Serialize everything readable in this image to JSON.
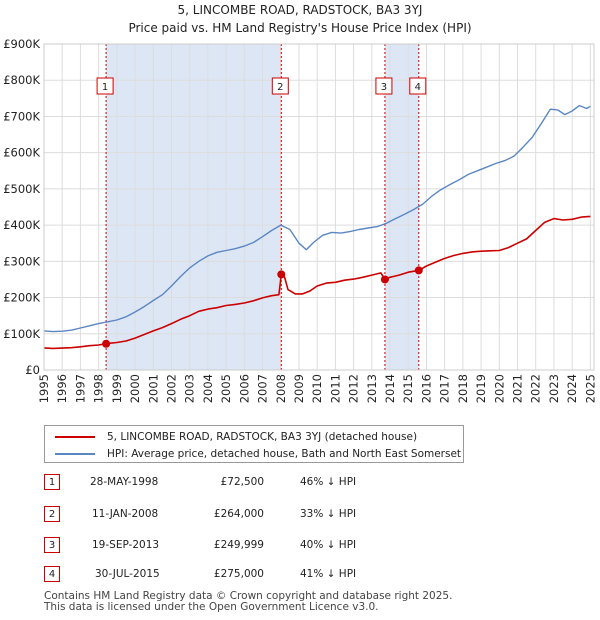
{
  "chart_data": {
    "type": "line",
    "title": "5, LINCOMBE ROAD, RADSTOCK, BA3 3YJ",
    "subtitle": "Price paid vs. HM Land Registry's House Price Index (HPI)",
    "xlim": [
      1995.0,
      2025.2
    ],
    "ylim": [
      0,
      900000
    ],
    "x_ticks": [
      "1995",
      "1996",
      "1997",
      "1998",
      "1999",
      "2000",
      "2001",
      "2002",
      "2003",
      "2004",
      "2005",
      "2006",
      "2007",
      "2008",
      "2009",
      "2010",
      "2011",
      "2012",
      "2013",
      "2014",
      "2015",
      "2016",
      "2017",
      "2018",
      "2019",
      "2020",
      "2021",
      "2022",
      "2023",
      "2024",
      "2025"
    ],
    "y_ticks": [
      {
        "value": 0,
        "label": "£0"
      },
      {
        "value": 100000,
        "label": "£100K"
      },
      {
        "value": 200000,
        "label": "£200K"
      },
      {
        "value": 300000,
        "label": "£300K"
      },
      {
        "value": 400000,
        "label": "£400K"
      },
      {
        "value": 500000,
        "label": "£500K"
      },
      {
        "value": 600000,
        "label": "£600K"
      },
      {
        "value": 700000,
        "label": "£700K"
      },
      {
        "value": 800000,
        "label": "£800K"
      },
      {
        "value": 900000,
        "label": "£900K"
      }
    ],
    "colors": {
      "property": "#cc0000",
      "hpi": "#5a87c4",
      "shade": "#dde6f5",
      "grid": "#dddddd",
      "marker": "#cc0000"
    },
    "series": [
      {
        "name": "5, LINCOMBE ROAD, RADSTOCK, BA3 3YJ (detached house)",
        "key": "property",
        "points": [
          [
            1995.0,
            61000
          ],
          [
            1995.5,
            59500
          ],
          [
            1996.0,
            60500
          ],
          [
            1996.5,
            61500
          ],
          [
            1997.0,
            64000
          ],
          [
            1997.5,
            67000
          ],
          [
            1998.0,
            69000
          ],
          [
            1998.41,
            72500
          ],
          [
            1998.5,
            73500
          ],
          [
            1999.0,
            76000
          ],
          [
            1999.5,
            80000
          ],
          [
            2000.0,
            88000
          ],
          [
            2000.5,
            98000
          ],
          [
            2001.0,
            108000
          ],
          [
            2001.5,
            117000
          ],
          [
            2002.0,
            128000
          ],
          [
            2002.5,
            140000
          ],
          [
            2003.0,
            150000
          ],
          [
            2003.5,
            162000
          ],
          [
            2004.0,
            168000
          ],
          [
            2004.5,
            172000
          ],
          [
            2005.0,
            178000
          ],
          [
            2005.5,
            181000
          ],
          [
            2006.0,
            185000
          ],
          [
            2006.5,
            191000
          ],
          [
            2007.0,
            199000
          ],
          [
            2007.5,
            205000
          ],
          [
            2007.9,
            208000
          ],
          [
            2008.03,
            264000
          ],
          [
            2008.2,
            258000
          ],
          [
            2008.4,
            222000
          ],
          [
            2008.8,
            210000
          ],
          [
            2009.2,
            210000
          ],
          [
            2009.6,
            218000
          ],
          [
            2010.0,
            232000
          ],
          [
            2010.5,
            240000
          ],
          [
            2011.0,
            242000
          ],
          [
            2011.5,
            248000
          ],
          [
            2012.0,
            251000
          ],
          [
            2012.5,
            256000
          ],
          [
            2013.0,
            262000
          ],
          [
            2013.5,
            268000
          ],
          [
            2013.72,
            249999
          ],
          [
            2014.0,
            256000
          ],
          [
            2014.5,
            262000
          ],
          [
            2015.0,
            270000
          ],
          [
            2015.58,
            275000
          ],
          [
            2016.0,
            287000
          ],
          [
            2016.5,
            298000
          ],
          [
            2017.0,
            308000
          ],
          [
            2017.5,
            316000
          ],
          [
            2018.0,
            322000
          ],
          [
            2018.5,
            326000
          ],
          [
            2019.0,
            328000
          ],
          [
            2019.5,
            329000
          ],
          [
            2020.0,
            330000
          ],
          [
            2020.5,
            338000
          ],
          [
            2021.0,
            350000
          ],
          [
            2021.5,
            362000
          ],
          [
            2022.0,
            385000
          ],
          [
            2022.5,
            408000
          ],
          [
            2023.0,
            418000
          ],
          [
            2023.5,
            414000
          ],
          [
            2024.0,
            416000
          ],
          [
            2024.5,
            422000
          ],
          [
            2025.0,
            424000
          ]
        ]
      },
      {
        "name": "HPI: Average price, detached house, Bath and North East Somerset",
        "key": "hpi",
        "points": [
          [
            1995.0,
            108000
          ],
          [
            1995.5,
            106000
          ],
          [
            1996.0,
            107000
          ],
          [
            1996.5,
            110000
          ],
          [
            1997.0,
            116000
          ],
          [
            1997.5,
            122000
          ],
          [
            1998.0,
            128000
          ],
          [
            1998.5,
            133000
          ],
          [
            1999.0,
            138000
          ],
          [
            1999.5,
            147000
          ],
          [
            2000.0,
            160000
          ],
          [
            2000.5,
            175000
          ],
          [
            2001.0,
            192000
          ],
          [
            2001.5,
            208000
          ],
          [
            2002.0,
            232000
          ],
          [
            2002.5,
            258000
          ],
          [
            2003.0,
            282000
          ],
          [
            2003.5,
            300000
          ],
          [
            2004.0,
            315000
          ],
          [
            2004.5,
            325000
          ],
          [
            2005.0,
            330000
          ],
          [
            2005.5,
            335000
          ],
          [
            2006.0,
            342000
          ],
          [
            2006.5,
            352000
          ],
          [
            2007.0,
            368000
          ],
          [
            2007.5,
            385000
          ],
          [
            2008.0,
            400000
          ],
          [
            2008.5,
            388000
          ],
          [
            2009.0,
            350000
          ],
          [
            2009.4,
            332000
          ],
          [
            2009.8,
            352000
          ],
          [
            2010.3,
            372000
          ],
          [
            2010.8,
            380000
          ],
          [
            2011.3,
            378000
          ],
          [
            2011.8,
            382000
          ],
          [
            2012.3,
            388000
          ],
          [
            2012.8,
            392000
          ],
          [
            2013.3,
            396000
          ],
          [
            2013.8,
            405000
          ],
          [
            2014.3,
            418000
          ],
          [
            2014.8,
            430000
          ],
          [
            2015.3,
            443000
          ],
          [
            2015.8,
            458000
          ],
          [
            2016.3,
            480000
          ],
          [
            2016.8,
            498000
          ],
          [
            2017.3,
            512000
          ],
          [
            2017.8,
            525000
          ],
          [
            2018.3,
            540000
          ],
          [
            2018.8,
            550000
          ],
          [
            2019.3,
            560000
          ],
          [
            2019.8,
            570000
          ],
          [
            2020.3,
            578000
          ],
          [
            2020.8,
            590000
          ],
          [
            2021.3,
            615000
          ],
          [
            2021.8,
            642000
          ],
          [
            2022.3,
            680000
          ],
          [
            2022.8,
            720000
          ],
          [
            2023.2,
            718000
          ],
          [
            2023.6,
            705000
          ],
          [
            2024.0,
            715000
          ],
          [
            2024.4,
            730000
          ],
          [
            2024.8,
            722000
          ],
          [
            2025.0,
            728000
          ]
        ]
      }
    ],
    "shaded_ranges": [
      [
        1998.41,
        2008.03
      ],
      [
        2013.72,
        2015.58
      ]
    ],
    "transactions": [
      {
        "num": "1",
        "date": "28-MAY-1998",
        "price": "£72,500",
        "hpi": "46% ↓ HPI",
        "x": 1998.41,
        "y": 72500
      },
      {
        "num": "2",
        "date": "11-JAN-2008",
        "price": "£264,000",
        "hpi": "33% ↓ HPI",
        "x": 2008.03,
        "y": 264000
      },
      {
        "num": "3",
        "date": "19-SEP-2013",
        "price": "£249,999",
        "hpi": "40% ↓ HPI",
        "x": 2013.72,
        "y": 249999
      },
      {
        "num": "4",
        "date": "30-JUL-2015",
        "price": "£275,000",
        "hpi": "41% ↓ HPI",
        "x": 2015.58,
        "y": 275000
      }
    ]
  },
  "legend": {
    "property_label": "5, LINCOMBE ROAD, RADSTOCK, BA3 3YJ (detached house)",
    "hpi_label": "HPI: Average price, detached house, Bath and North East Somerset"
  },
  "footer": {
    "line1": "Contains HM Land Registry data © Crown copyright and database right 2025.",
    "line2": "This data is licensed under the Open Government Licence v3.0."
  }
}
